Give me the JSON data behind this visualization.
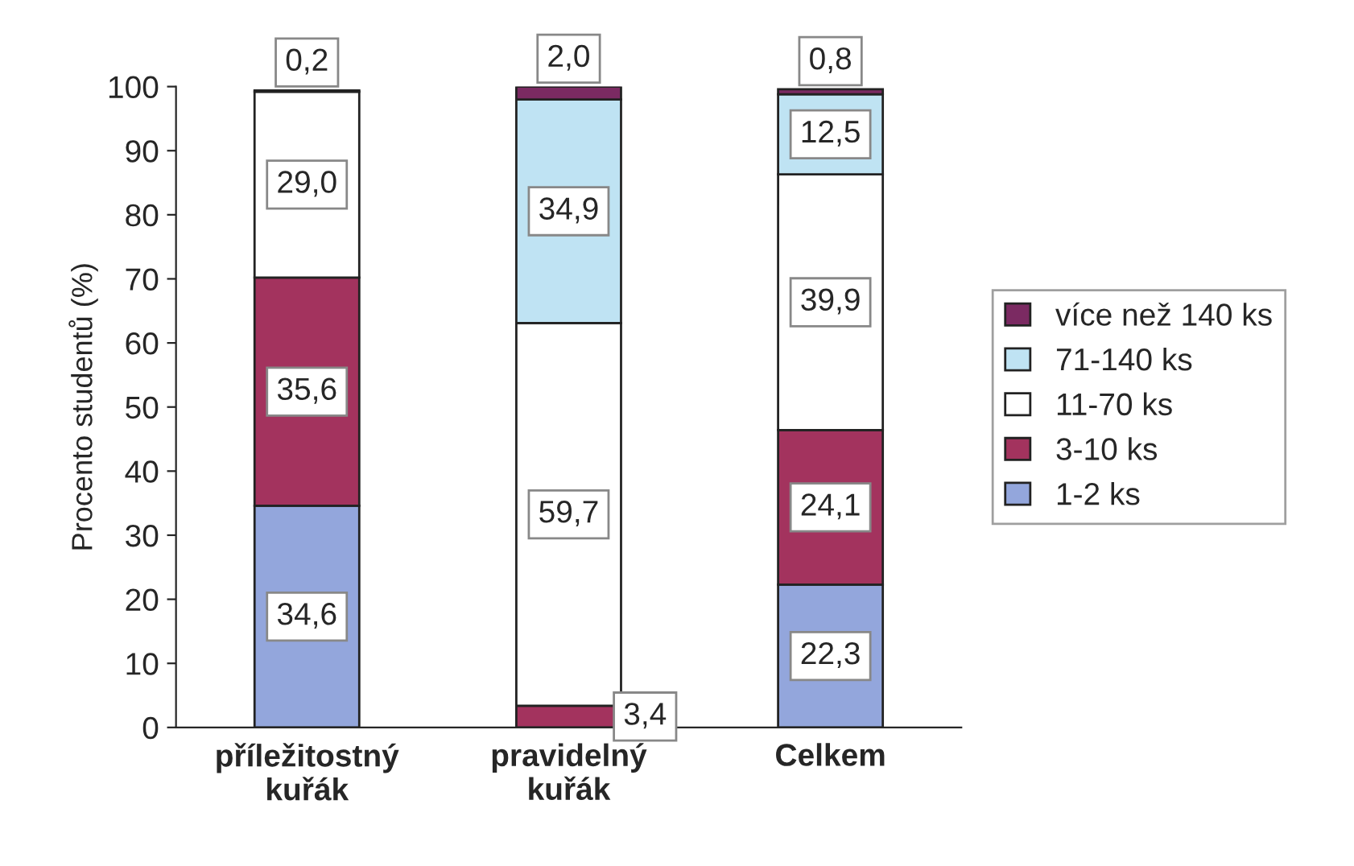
{
  "chart_data": {
    "type": "bar",
    "stacked": true,
    "ylabel": "Procento studentů (%)",
    "categories": [
      "příležitostný\nkuřák",
      "pravidelný\nkuřák",
      "Celkem"
    ],
    "series": [
      {
        "name": "1-2 ks",
        "color": "#93a6dc",
        "values": [
          34.6,
          null,
          22.3
        ],
        "value_labels": [
          "34,6",
          null,
          "22,3"
        ]
      },
      {
        "name": "3-10 ks",
        "color": "#a3335e",
        "values": [
          35.6,
          3.4,
          24.1
        ],
        "value_labels": [
          "35,6",
          "3,4",
          "24,1"
        ]
      },
      {
        "name": "11-70 ks",
        "color": "#ffffff",
        "values": [
          29.0,
          59.7,
          39.9
        ],
        "value_labels": [
          "29,0",
          "59,7",
          "39,9"
        ]
      },
      {
        "name": "71-140 ks",
        "color": "#bfe3f3",
        "values": [
          null,
          34.9,
          12.5
        ],
        "value_labels": [
          null,
          "34,9",
          "12,5"
        ]
      },
      {
        "name": "více než 140 ks",
        "color": "#7b2a62",
        "values": [
          0.2,
          2.0,
          0.8
        ],
        "value_labels": [
          "0,2",
          "2,0",
          "0,8"
        ]
      }
    ],
    "ylim": [
      0,
      100
    ],
    "yticks": [
      0,
      10,
      20,
      30,
      40,
      50,
      60,
      70,
      80,
      90,
      100
    ],
    "legend": "right",
    "grid": false
  }
}
